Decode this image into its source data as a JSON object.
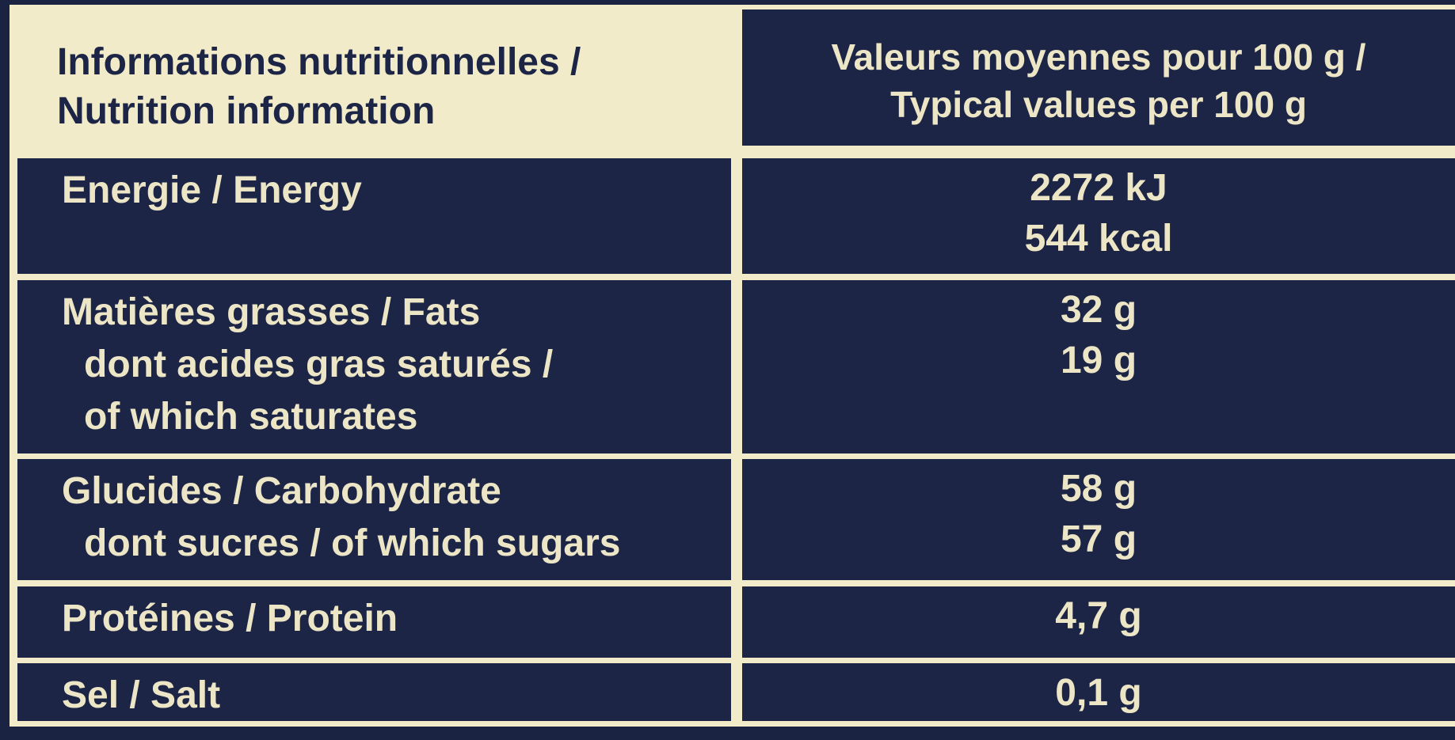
{
  "header": {
    "title": [
      "Informations nutritionnelles /",
      "Nutrition information"
    ],
    "subtitle": [
      "Valeurs moyennes pour 100 g /",
      "Typical values per 100 g"
    ]
  },
  "rows": [
    {
      "label": [
        "Energie / Energy"
      ],
      "values": [
        "2272 kJ",
        "544 kcal"
      ]
    },
    {
      "label": [
        "Matières grasses / Fats",
        "dont acides gras saturés /",
        "of which saturates"
      ],
      "values": [
        "32 g",
        "19 g"
      ]
    },
    {
      "label": [
        "Glucides / Carbohydrate",
        "dont sucres / of which sugars"
      ],
      "values": [
        "58 g",
        "57 g"
      ]
    },
    {
      "label": [
        "Protéines / Protein"
      ],
      "values": [
        "4,7 g"
      ]
    },
    {
      "label": [
        "Sel / Salt"
      ],
      "values": [
        "0,1 g"
      ]
    }
  ]
}
